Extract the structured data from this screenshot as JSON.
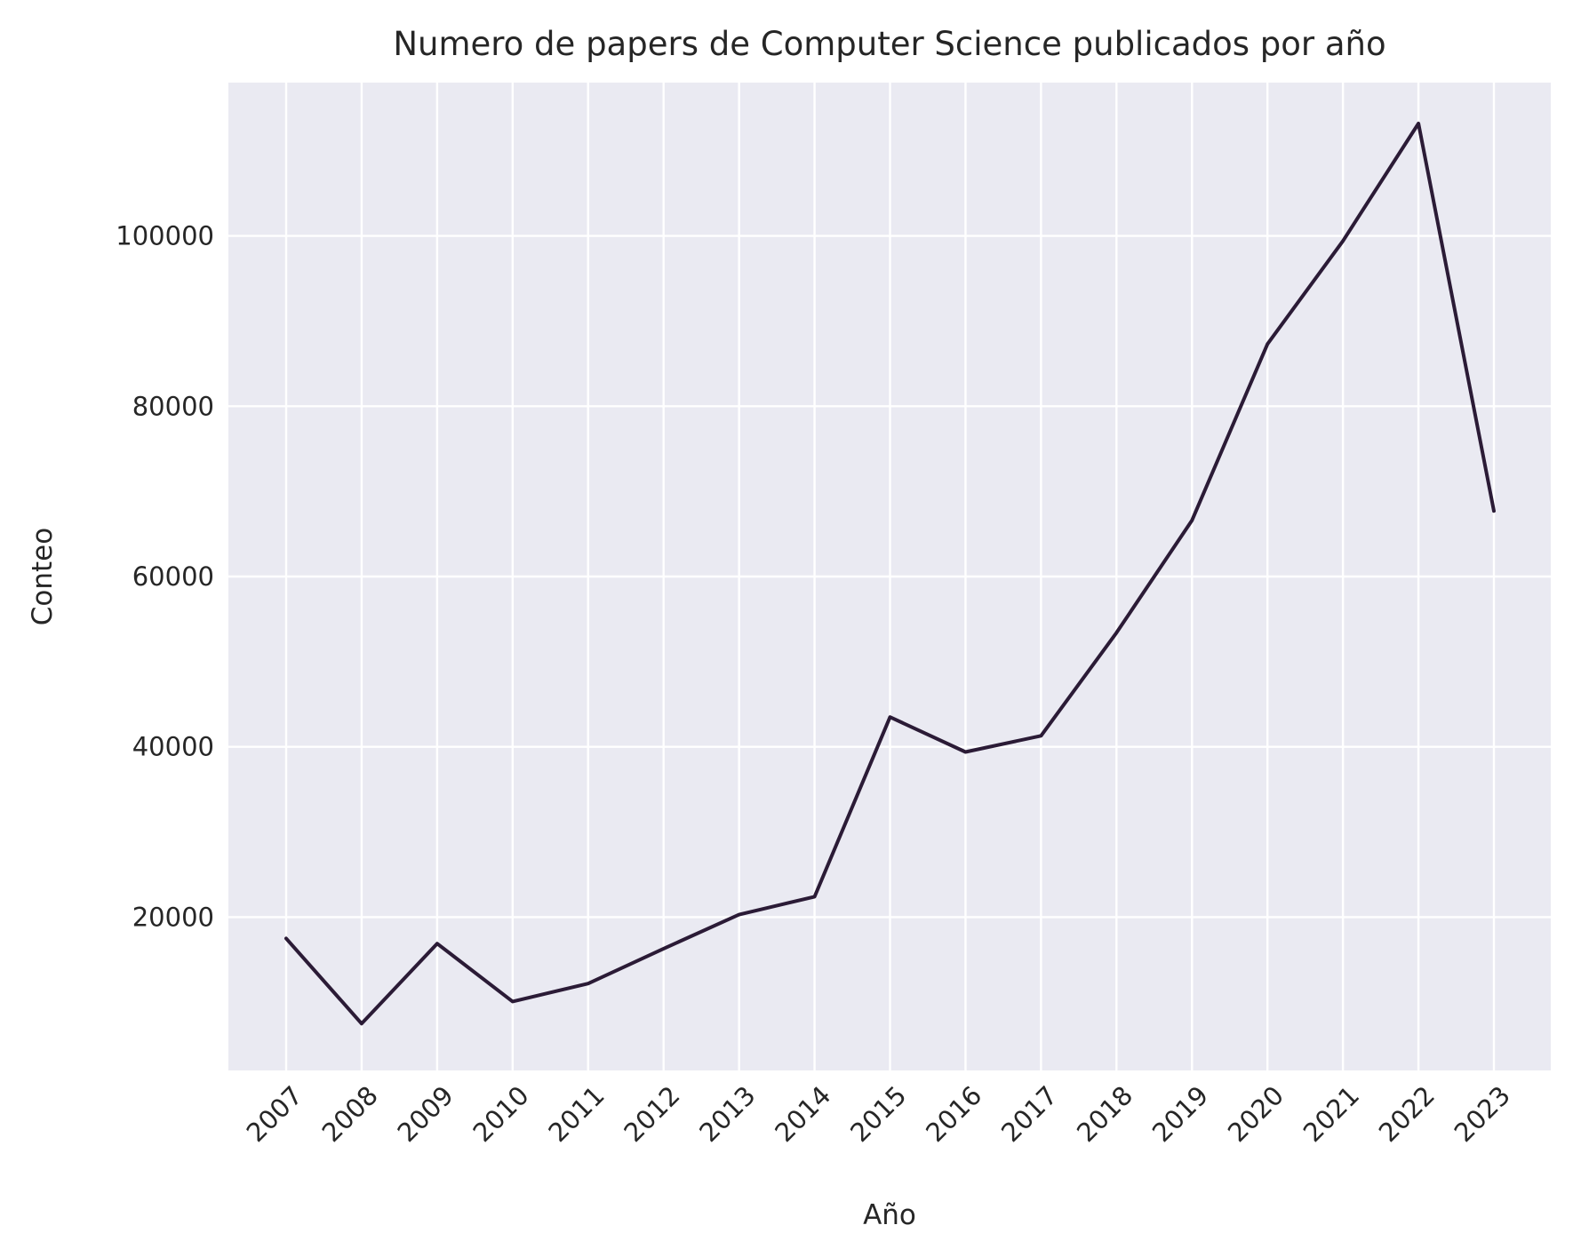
{
  "chart_data": {
    "type": "line",
    "title": "Numero de papers de Computer Science publicados por año",
    "xlabel": "Año",
    "ylabel": "Conteo",
    "x": [
      "2007",
      "2008",
      "2009",
      "2010",
      "2011",
      "2012",
      "2013",
      "2014",
      "2015",
      "2016",
      "2017",
      "2018",
      "2019",
      "2020",
      "2021",
      "2022",
      "2023"
    ],
    "series": [
      {
        "values": [
          17500,
          7500,
          16900,
          10100,
          12200,
          16300,
          20300,
          22400,
          43500,
          39400,
          41300,
          53400,
          66600,
          87300,
          99400,
          113200,
          67700
        ]
      }
    ],
    "yticks": [
      20000,
      40000,
      60000,
      80000,
      100000
    ],
    "ytick_labels": [
      "20000",
      "40000",
      "60000",
      "80000",
      "100000"
    ],
    "ylim": [
      2000,
      118000
    ],
    "grid": true,
    "legend": "none",
    "colors": {
      "line": "#2b1b36",
      "plot_background": "#eaeaf2",
      "grid": "#ffffff",
      "text": "#262626"
    }
  }
}
